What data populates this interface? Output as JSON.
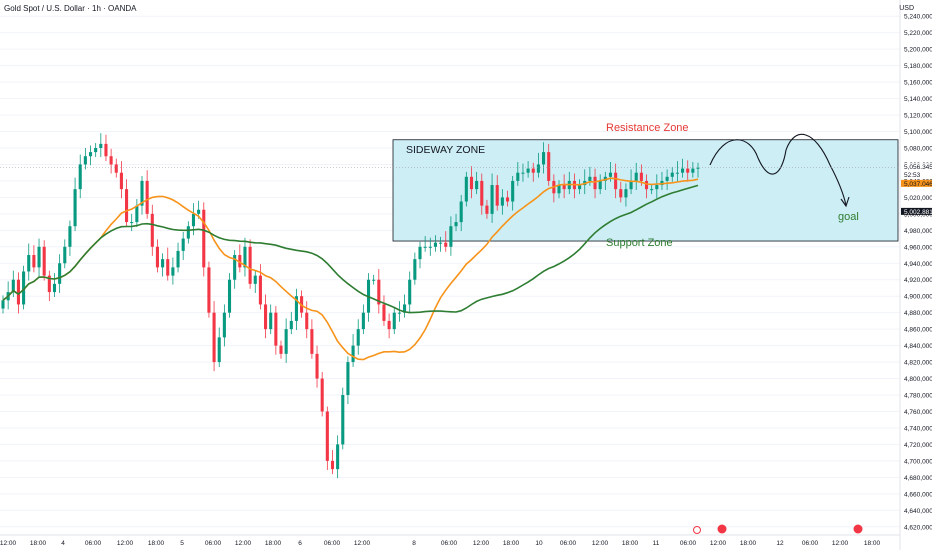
{
  "header": {
    "title": "Gold Spot / U.S. Dollar · 1h · OANDA",
    "currency": "USD"
  },
  "annotations": {
    "sideway": "SIDEWAY ZONE",
    "resistance": "Resistance Zone",
    "support": "Support Zone",
    "goal": "goal"
  },
  "price_tags": {
    "last": "5,056.345",
    "countdown": "52:53",
    "ma_short": "5,037.046",
    "ma_long": "5,002.881"
  },
  "colors": {
    "up": "#089981",
    "down": "#f23645",
    "ma_short": "#f7931a",
    "ma_long": "#2e7d32",
    "zone_fill": "#cdeef4",
    "resistance": "#e53935",
    "support": "#2e7d32",
    "grid": "#f0f3fa",
    "label_bg": "#131722"
  },
  "chart_data": {
    "type": "candlestick",
    "title": "Gold Spot / U.S. Dollar · 1h · OANDA",
    "yaxis_unit": "USD",
    "ylim": [
      4610,
      5250
    ],
    "y_ticks": [
      "4,620,000",
      "4,640,000",
      "4,660,000",
      "4,680,000",
      "4,700,000",
      "4,720,000",
      "4,740,000",
      "4,760,000",
      "4,780,000",
      "4,800,000",
      "4,820,000",
      "4,840,000",
      "4,860,000",
      "4,880,000",
      "4,900,000",
      "4,920,000",
      "4,940,000",
      "4,960,000",
      "4,980,000",
      "5,000,000",
      "5,020,000",
      "5,040,000",
      "5,060,000",
      "5,080,000",
      "5,100,000",
      "5,120,000",
      "5,140,000",
      "5,160,000",
      "5,180,000",
      "5,200,000",
      "5,220,000",
      "5,240,000"
    ],
    "x_ticks": [
      "12:00",
      "18:00",
      "4",
      "06:00",
      "12:00",
      "18:00",
      "5",
      "06:00",
      "12:00",
      "18:00",
      "6",
      "06:00",
      "12:00",
      "8",
      "06:00",
      "12:00",
      "18:00",
      "10",
      "06:00",
      "12:00",
      "18:00",
      "11",
      "06:00",
      "12:00",
      "18:00",
      "12",
      "06:00",
      "12:00",
      "18:00"
    ],
    "series": [
      {
        "name": "price",
        "candle_start_index": 0,
        "close": [
          4895,
          4905,
          4920,
          4890,
          4930,
          4950,
          4935,
          4960,
          4925,
          4905,
          4915,
          4940,
          4960,
          4985,
          5030,
          5060,
          5070,
          5075,
          5080,
          5085,
          5070,
          5060,
          5050,
          5030,
          4990,
          4990,
          5010,
          5040,
          5000,
          4960,
          4935,
          4945,
          4925,
          4935,
          4955,
          4970,
          4985,
          5000,
          5005,
          4935,
          4880,
          4820,
          4850,
          4880,
          4920,
          4950,
          4935,
          4960,
          4915,
          4925,
          4890,
          4860,
          4880,
          4840,
          4830,
          4860,
          4870,
          4900,
          4880,
          4860,
          4830,
          4800,
          4760,
          4700,
          4690,
          4720,
          4780,
          4820,
          4840,
          4860,
          4880,
          4920,
          4920,
          4890,
          4870,
          4860,
          4880,
          4880,
          4890,
          4920,
          4945,
          4960,
          4960,
          4960,
          4965,
          4965,
          4960,
          4985,
          4990,
          5015,
          5045,
          5030,
          5040,
          5010,
          5000,
          5035,
          5010,
          5020,
          5015,
          5040,
          5050,
          5050,
          5055,
          5050,
          5060,
          5075,
          5040,
          5025,
          5035,
          5030,
          5040,
          5030,
          5035,
          5040,
          5045,
          5030,
          5040,
          5045,
          5050,
          5030,
          5020,
          5030,
          5040,
          5050,
          5040,
          5030,
          5030,
          5035,
          5040,
          5045,
          5050,
          5050,
          5055,
          5050,
          5055,
          5056
        ]
      }
    ],
    "moving_averages": [
      {
        "period_label": "short",
        "values_end": 5037
      },
      {
        "period_label": "long",
        "values_end": 5003
      }
    ],
    "zones": [
      {
        "name": "Sideway Zone",
        "top": 5090,
        "bottom": 4967
      }
    ]
  }
}
